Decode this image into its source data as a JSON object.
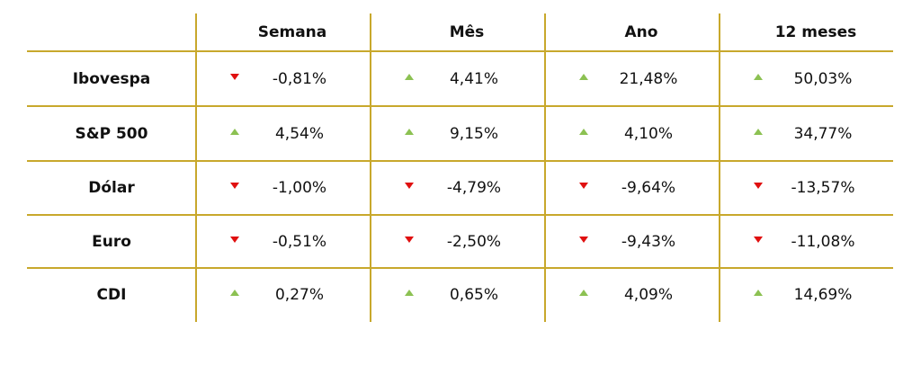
{
  "table": {
    "columns": [
      "Semana",
      "Mês",
      "Ano",
      "12 meses"
    ],
    "rows": [
      {
        "label": "Ibovespa",
        "values": [
          "-0,81%",
          "4,41%",
          "21,48%",
          "50,03%"
        ]
      },
      {
        "label": "S&P 500",
        "values": [
          "4,54%",
          "9,15%",
          "4,10%",
          "34,77%"
        ]
      },
      {
        "label": "Dólar",
        "values": [
          "-1,00%",
          "-4,79%",
          "-9,64%",
          "-13,57%"
        ]
      },
      {
        "label": "Euro",
        "values": [
          "-0,51%",
          "-2,50%",
          "-9,43%",
          "-11,08%"
        ]
      },
      {
        "label": "CDI",
        "values": [
          "0,27%",
          "0,65%",
          "4,09%",
          "14,69%"
        ]
      }
    ]
  }
}
